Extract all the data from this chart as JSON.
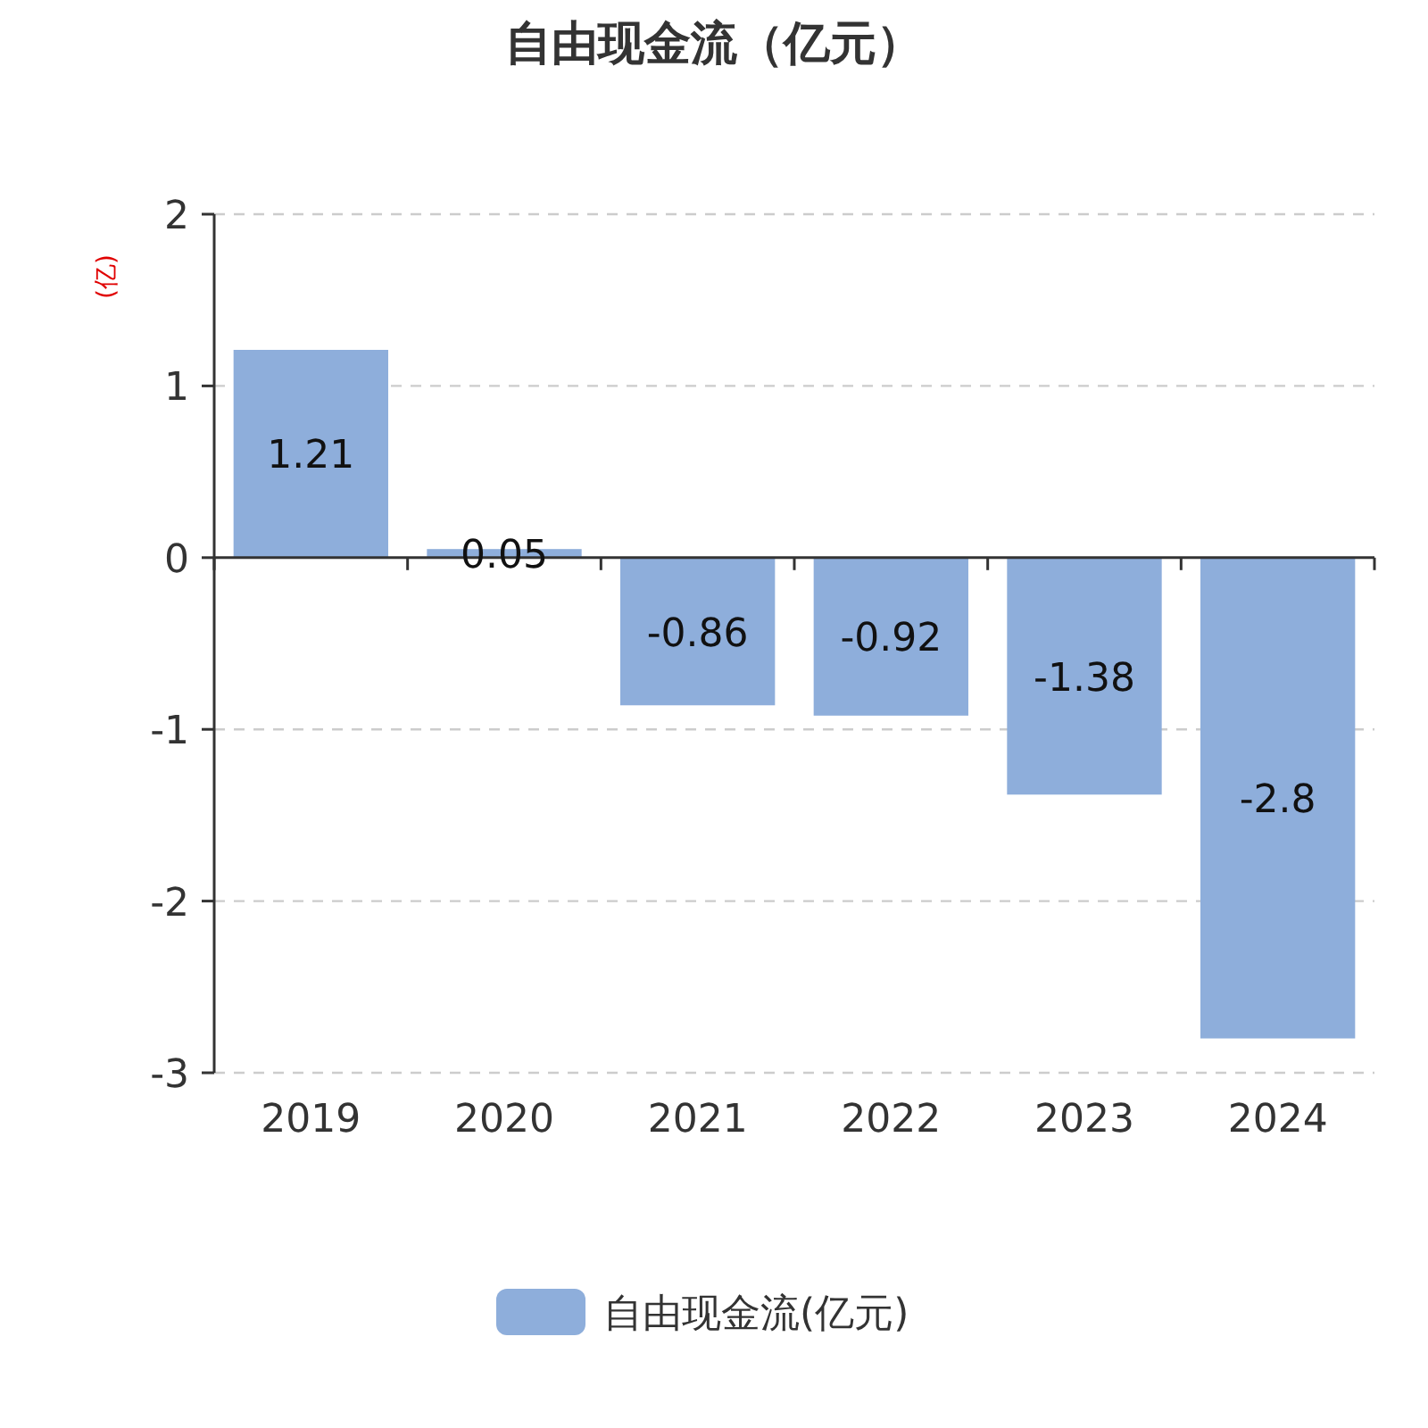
{
  "chart_data": {
    "type": "bar",
    "title": "自由现金流（亿元）",
    "ylabel": "(亿)",
    "categories": [
      "2019",
      "2020",
      "2021",
      "2022",
      "2023",
      "2024"
    ],
    "series": [
      {
        "name": "自由现金流(亿元)",
        "color": "#8eaedb",
        "values": [
          1.21,
          0.05,
          -0.86,
          -0.92,
          -1.38,
          -2.8
        ]
      }
    ],
    "ylim": [
      -3,
      2
    ],
    "yticks": [
      -3,
      -2,
      -1,
      0,
      1,
      2
    ],
    "grid": "y",
    "legend": "bottom",
    "data_labels": true
  }
}
